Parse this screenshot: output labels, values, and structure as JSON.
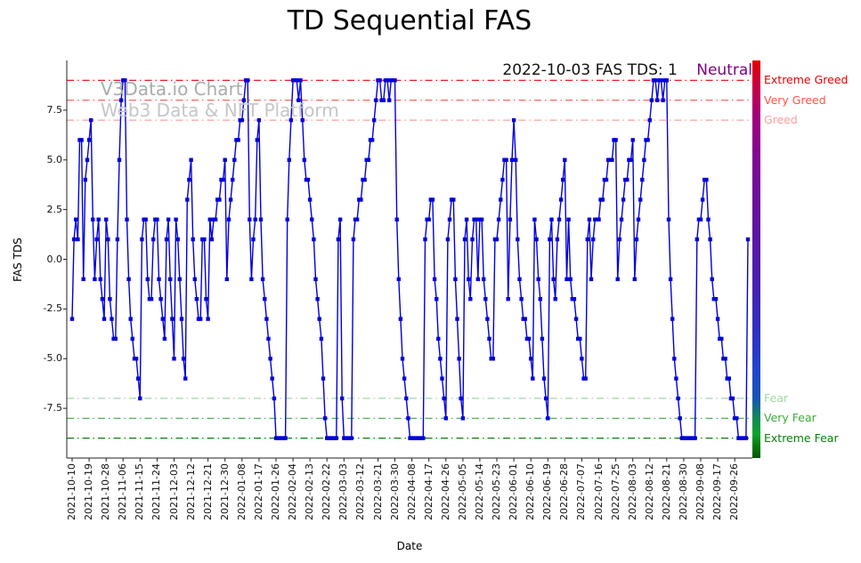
{
  "title": "TD Sequential FAS",
  "annotation": {
    "text": "2022-10-03 FAS TDS: 1",
    "status": "Neutral",
    "status_color": "#800080"
  },
  "watermark": {
    "line1": "V3Data.io Chart",
    "line2": "Web3 Data & NFT Platform"
  },
  "chart_data": {
    "type": "line",
    "title": "TD Sequential FAS",
    "xlabel": "Date",
    "ylabel": "FAS TDS",
    "ylim": [
      -10,
      10
    ],
    "grid": false,
    "legend_position": "none",
    "line_color": "#0000dd",
    "marker": "square",
    "start_date": "2021-10-10",
    "end_date": "2022-10-03",
    "x_tick_labels": [
      "2021-10-10",
      "2021-10-19",
      "2021-10-28",
      "2021-11-06",
      "2021-11-15",
      "2021-11-24",
      "2021-12-03",
      "2021-12-12",
      "2021-12-21",
      "2021-12-30",
      "2022-01-08",
      "2022-01-17",
      "2022-01-26",
      "2022-02-04",
      "2022-02-13",
      "2022-02-22",
      "2022-03-03",
      "2022-03-12",
      "2022-03-21",
      "2022-03-30",
      "2022-04-08",
      "2022-04-17",
      "2022-04-26",
      "2022-05-05",
      "2022-05-14",
      "2022-05-23",
      "2022-06-01",
      "2022-06-10",
      "2022-06-19",
      "2022-06-28",
      "2022-07-07",
      "2022-07-16",
      "2022-07-25",
      "2022-08-03",
      "2022-08-12",
      "2022-08-21",
      "2022-08-30",
      "2022-09-08",
      "2022-09-17",
      "2022-09-26"
    ],
    "y_ticks": [
      "7.5",
      "5.0",
      "2.5",
      "0.0",
      "-2.5",
      "-5.0",
      "-7.5"
    ],
    "thresholds": [
      {
        "value": 9,
        "label": "Extreme Greed",
        "color": "#e60000"
      },
      {
        "value": 8,
        "label": "Very Greed",
        "color": "#ff5544"
      },
      {
        "value": 7,
        "label": "Greed",
        "color": "#ff9d9d"
      },
      {
        "value": -7,
        "label": "Fear",
        "color": "#9fd89f"
      },
      {
        "value": -8,
        "label": "Very Fear",
        "color": "#3cab3c"
      },
      {
        "value": -9,
        "label": "Extreme Fear",
        "color": "#087f08"
      }
    ],
    "series": [
      {
        "name": "FAS TDS",
        "values": [
          -3,
          1,
          2,
          1,
          6,
          6,
          -1,
          4,
          5,
          6,
          7,
          2,
          -1,
          1,
          2,
          -1,
          -2,
          -3,
          2,
          1,
          -2,
          -3,
          -4,
          -4,
          1,
          5,
          8,
          9,
          9,
          2,
          -1,
          -3,
          -4,
          -5,
          -5,
          -6,
          -7,
          1,
          2,
          2,
          -1,
          -2,
          -2,
          1,
          2,
          2,
          -1,
          -2,
          -3,
          -4,
          1,
          2,
          -1,
          -3,
          -5,
          2,
          1,
          -1,
          -3,
          -5,
          -6,
          3,
          4,
          5,
          1,
          -1,
          -2,
          -3,
          -3,
          1,
          1,
          -2,
          -3,
          2,
          1,
          2,
          2,
          3,
          3,
          4,
          4,
          5,
          -1,
          2,
          3,
          4,
          5,
          6,
          6,
          7,
          7,
          8,
          9,
          9,
          2,
          -1,
          1,
          2,
          6,
          7,
          2,
          -1,
          -2,
          -3,
          -4,
          -5,
          -6,
          -7,
          -9,
          -9,
          -9,
          -9,
          -9,
          -9,
          2,
          5,
          7,
          9,
          9,
          9,
          8,
          9,
          7,
          5,
          4,
          4,
          3,
          2,
          1,
          -1,
          -2,
          -3,
          -4,
          -6,
          -8,
          -9,
          -9,
          -9,
          -9,
          -9,
          -9,
          1,
          2,
          -7,
          -9,
          -9,
          -9,
          -9,
          -9,
          1,
          2,
          2,
          3,
          3,
          4,
          4,
          5,
          5,
          6,
          6,
          7,
          8,
          9,
          9,
          8,
          8,
          9,
          9,
          8,
          9,
          9,
          9,
          2,
          -1,
          -3,
          -5,
          -6,
          -7,
          -8,
          -9,
          -9,
          -9,
          -9,
          -9,
          -9,
          -9,
          -9,
          1,
          2,
          2,
          3,
          3,
          -1,
          -2,
          -4,
          -5,
          -6,
          -7,
          -8,
          1,
          2,
          3,
          3,
          -1,
          -3,
          -5,
          -7,
          -8,
          1,
          2,
          -1,
          -2,
          1,
          2,
          2,
          -1,
          2,
          2,
          -1,
          -2,
          -3,
          -4,
          -5,
          -5,
          1,
          1,
          2,
          3,
          4,
          5,
          5,
          -2,
          2,
          5,
          7,
          5,
          1,
          -1,
          -2,
          -3,
          -3,
          -4,
          -4,
          -5,
          -6,
          2,
          1,
          -1,
          -2,
          -4,
          -6,
          -7,
          -8,
          1,
          2,
          -1,
          -2,
          1,
          2,
          3,
          4,
          5,
          -1,
          2,
          -1,
          -2,
          -2,
          -3,
          -4,
          -4,
          -5,
          -6,
          -6,
          1,
          2,
          -1,
          1,
          2,
          2,
          2,
          3,
          3,
          4,
          4,
          5,
          5,
          5,
          6,
          6,
          -1,
          1,
          2,
          3,
          4,
          4,
          5,
          5,
          6,
          -1,
          1,
          2,
          3,
          4,
          5,
          6,
          6,
          7,
          8,
          9,
          9,
          8,
          9,
          9,
          8,
          9,
          9,
          2,
          -1,
          -3,
          -5,
          -6,
          -7,
          -8,
          -9,
          -9,
          -9,
          -9,
          -9,
          -9,
          -9,
          -9,
          1,
          2,
          2,
          3,
          4,
          4,
          2,
          1,
          -1,
          -2,
          -2,
          -3,
          -4,
          -4,
          -5,
          -5,
          -6,
          -6,
          -7,
          -7,
          -8,
          -8,
          -9,
          -9,
          -9,
          -9,
          -9,
          1
        ]
      }
    ]
  },
  "sentiment_bar": {
    "gradient": [
      [
        "#e00000",
        "0%"
      ],
      [
        "#c80040",
        "6%"
      ],
      [
        "#a2007e",
        "14%"
      ],
      [
        "#800894",
        "25%"
      ],
      [
        "#64129f",
        "40%"
      ],
      [
        "#4a1fae",
        "55%"
      ],
      [
        "#3030c0",
        "68%"
      ],
      [
        "#2145cc",
        "78%"
      ],
      [
        "#1655b4",
        "85%"
      ],
      [
        "#0e8a55",
        "90%"
      ],
      [
        "#0aa32a",
        "94%"
      ],
      [
        "#067a0c",
        "97%"
      ],
      [
        "#045606",
        "100%"
      ]
    ]
  }
}
